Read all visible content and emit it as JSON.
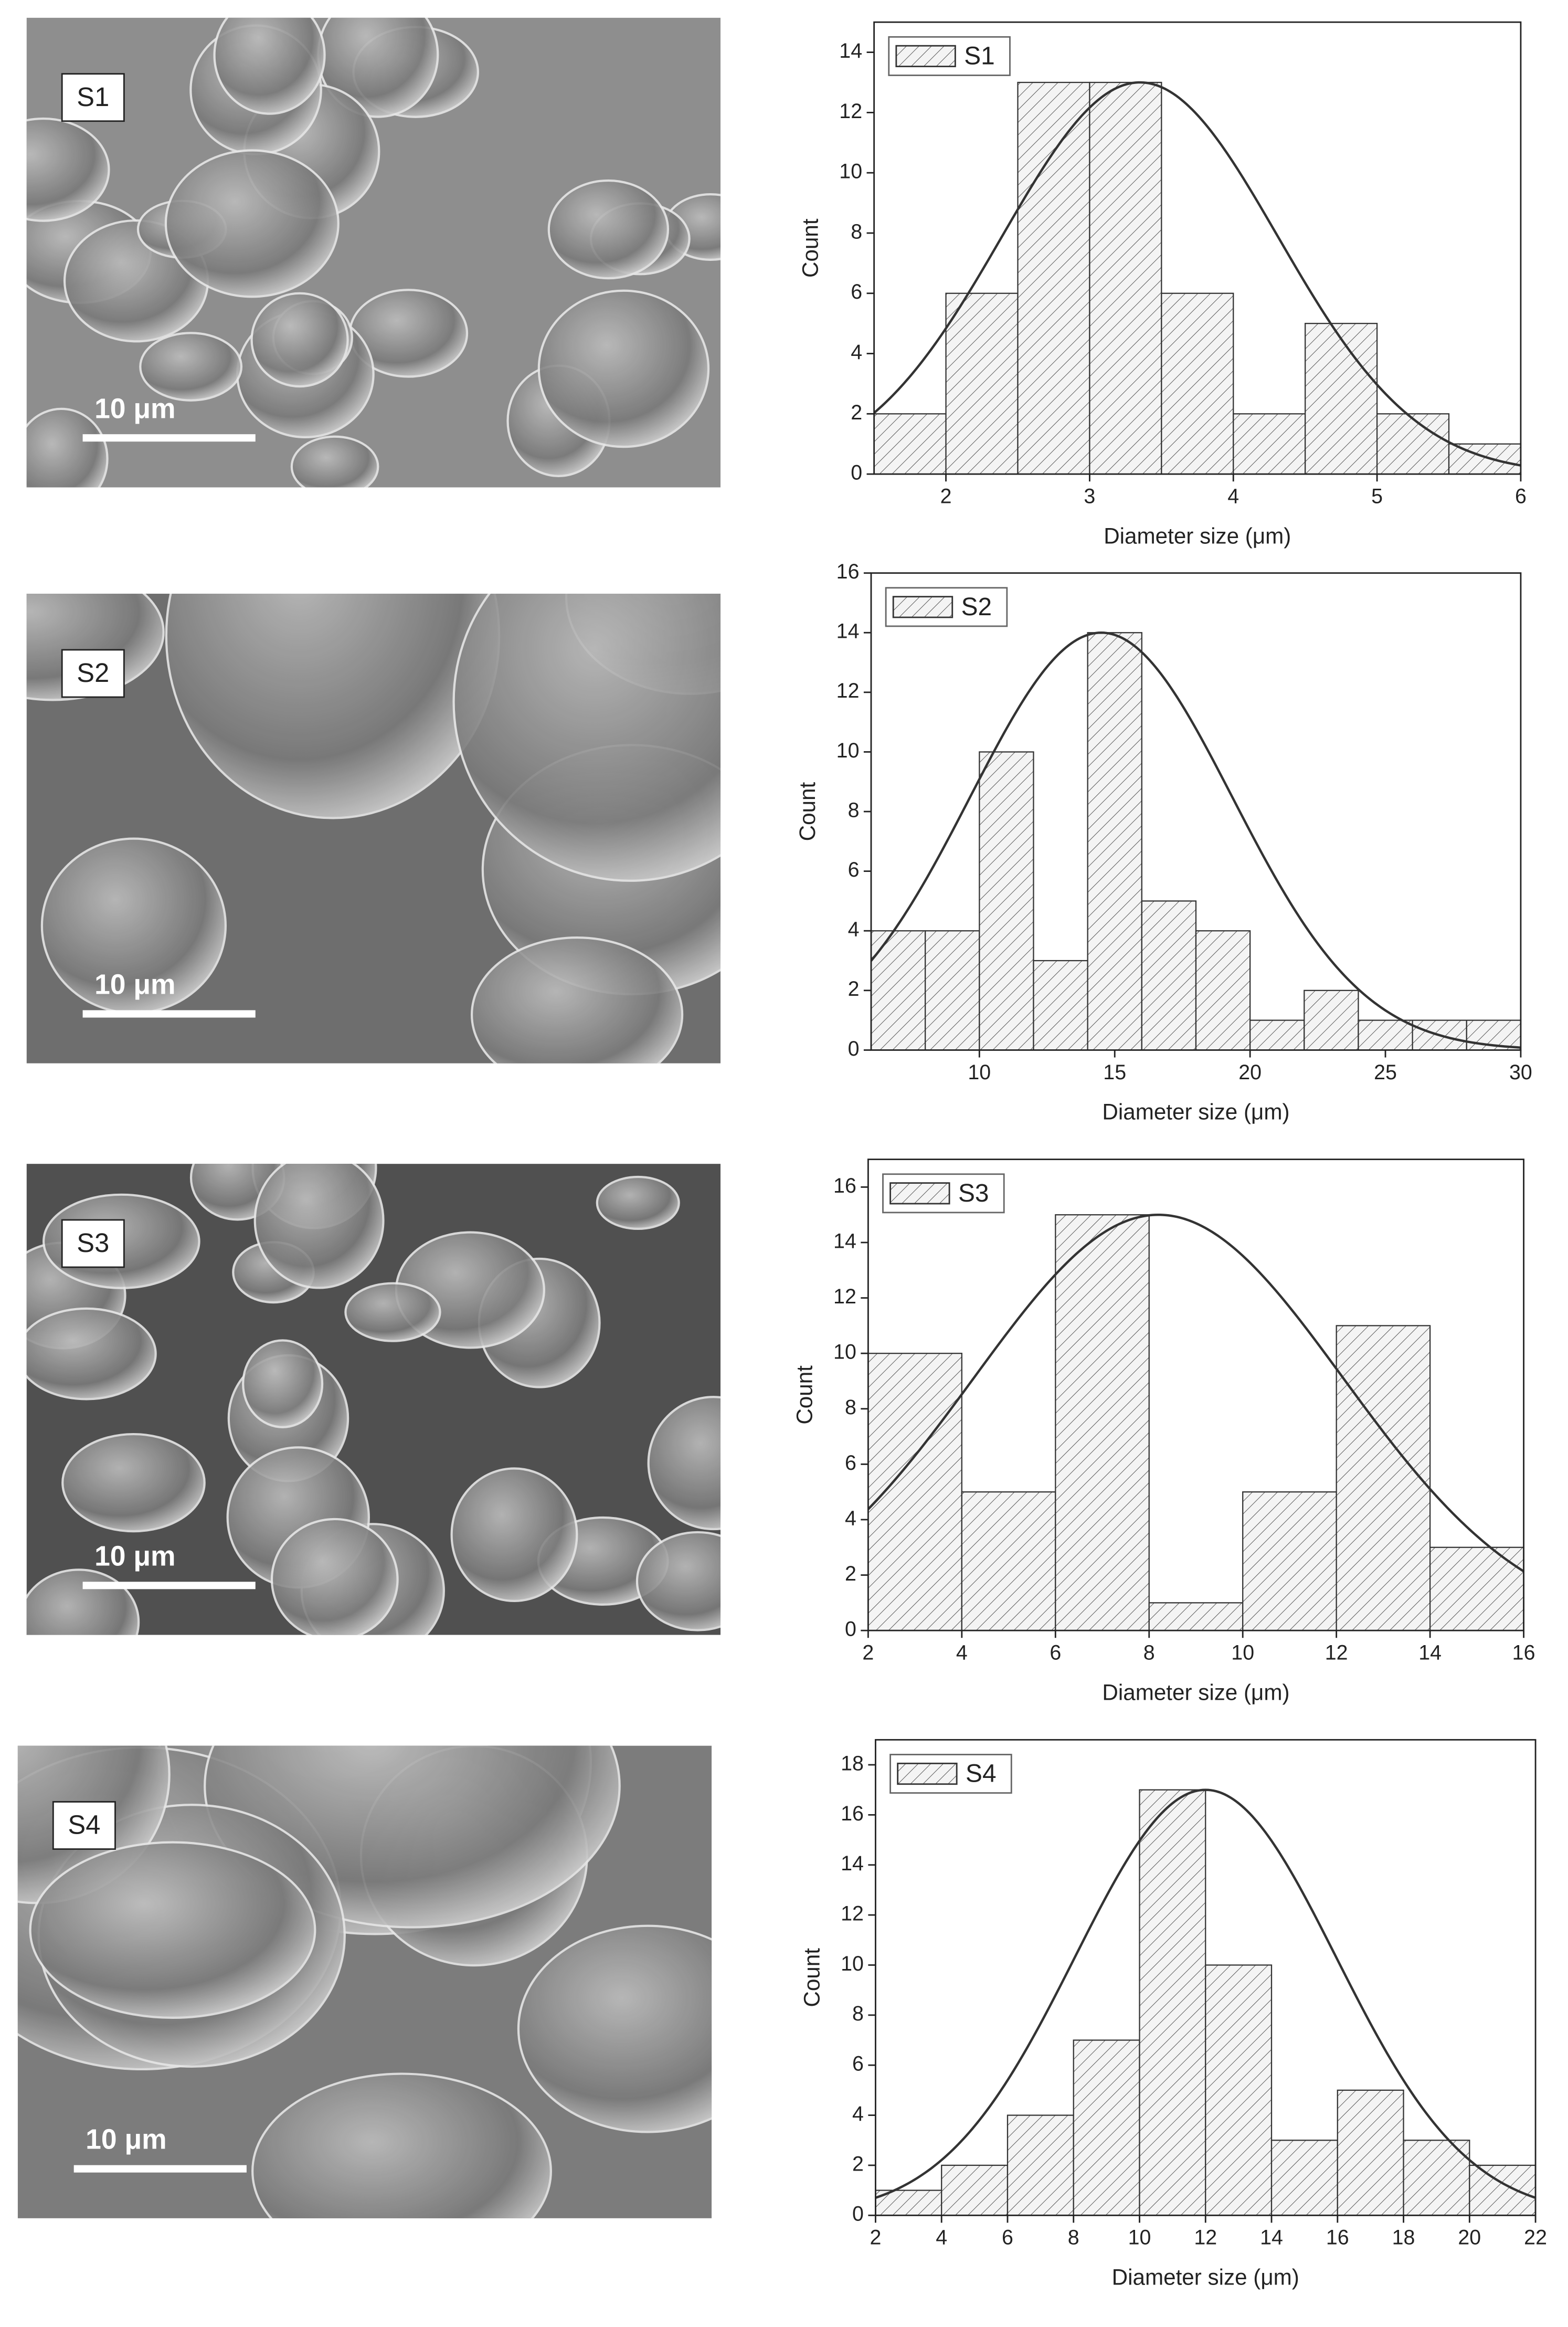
{
  "images": [
    {
      "label": "S1",
      "scale_bar": "10 μm"
    },
    {
      "label": "S2",
      "scale_bar": "10 μm"
    },
    {
      "label": "S3",
      "scale_bar": "10 μm"
    },
    {
      "label": "S4",
      "scale_bar": "10 μm"
    }
  ],
  "chart_data": [
    {
      "type": "histogram",
      "name": "S1",
      "color": "#333333",
      "x_label": "Diameter size (μm)",
      "y_label": "Count",
      "bins": [
        1.5,
        2,
        2.5,
        3,
        3.5,
        4,
        4.5,
        5,
        5.5,
        6
      ],
      "values": [
        2,
        6,
        13,
        13,
        6,
        2,
        5,
        2,
        1
      ],
      "fit": {
        "amplitude": 13,
        "mean": 3.35,
        "sigma": 0.96
      },
      "xlim": [
        1.5,
        6
      ],
      "xticks": [
        2,
        3,
        4,
        5,
        6
      ],
      "ylim": [
        0,
        15
      ],
      "yticks": [
        0,
        2,
        4,
        6,
        8,
        10,
        12,
        14
      ],
      "legend": "top-left"
    },
    {
      "type": "histogram",
      "name": "S2",
      "color": "#333333",
      "x_label": "Diameter size (μm)",
      "y_label": "Count",
      "bins": [
        6,
        8,
        10,
        12,
        14,
        16,
        18,
        20,
        22,
        24,
        26,
        28,
        30
      ],
      "values": [
        4,
        4,
        10,
        3,
        14,
        5,
        4,
        1,
        2,
        1,
        1,
        1
      ],
      "fit": {
        "amplitude": 14,
        "mean": 14.5,
        "sigma": 4.84
      },
      "xlim": [
        6,
        30
      ],
      "xticks": [
        10,
        15,
        20,
        25,
        30
      ],
      "ylim": [
        0,
        16
      ],
      "yticks": [
        0,
        2,
        4,
        6,
        8,
        10,
        12,
        14,
        16
      ],
      "legend": "top-left"
    },
    {
      "type": "histogram",
      "name": "S3",
      "color": "#333333",
      "x_label": "Diameter size (μm)",
      "y_label": "Count",
      "bins": [
        2,
        4,
        6,
        8,
        10,
        12,
        14,
        16
      ],
      "values": [
        10,
        5,
        15,
        1,
        5,
        11,
        3
      ],
      "fit": {
        "amplitude": 15,
        "mean": 8.2,
        "sigma": 3.95
      },
      "xlim": [
        2,
        16
      ],
      "xticks": [
        2,
        4,
        6,
        8,
        10,
        12,
        14,
        16
      ],
      "ylim": [
        0,
        17
      ],
      "yticks": [
        0,
        2,
        4,
        6,
        8,
        10,
        12,
        14,
        16
      ],
      "legend": "top-left"
    },
    {
      "type": "histogram",
      "name": "S4",
      "color": "#333333",
      "x_label": "Diameter size (μm)",
      "y_label": "Count",
      "bins": [
        2,
        4,
        6,
        8,
        10,
        12,
        14,
        16,
        18,
        20,
        22
      ],
      "values": [
        1,
        2,
        4,
        7,
        17,
        10,
        3,
        5,
        3,
        2
      ],
      "fit": {
        "amplitude": 17,
        "mean": 12,
        "sigma": 3.96
      },
      "xlim": [
        2,
        22
      ],
      "xticks": [
        2,
        4,
        6,
        8,
        10,
        12,
        14,
        16,
        18,
        20,
        22
      ],
      "ylim": [
        0,
        19
      ],
      "yticks": [
        0,
        2,
        4,
        6,
        8,
        10,
        12,
        14,
        16,
        18
      ],
      "legend": "top-left"
    }
  ]
}
